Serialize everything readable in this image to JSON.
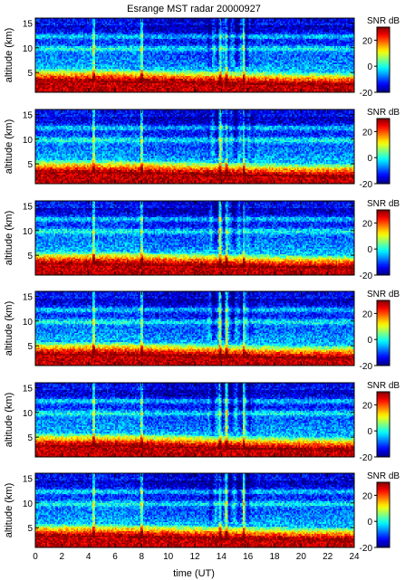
{
  "chart_data": {
    "type": "heatmap",
    "title": "Esrange MST radar 20000927",
    "xlabel": "time (UT)",
    "ylabel": "altitude (km)",
    "colorbar_label": "SNR dB",
    "xlim": [
      0,
      24
    ],
    "ylim": [
      1,
      16
    ],
    "x_ticks": [
      0,
      2,
      4,
      6,
      8,
      10,
      12,
      14,
      16,
      18,
      20,
      22,
      24
    ],
    "y_ticks": [
      5,
      10,
      15
    ],
    "colorbar_ticks": [
      -20,
      0,
      20
    ],
    "colorbar_range": [
      -20,
      30
    ],
    "colormap": "jet",
    "grid": false,
    "panel_count": 6,
    "time_resolution_hours": 0.1,
    "altitude_resolution_km": 0.3,
    "features": {
      "surface_layer_top_km": 4.5,
      "surface_layer_top_km_late": 3.8,
      "upper_band_altitudes_km": [
        9.8,
        12.3
      ],
      "vertical_streak_hours": [
        4.4,
        8.0,
        13.9,
        14.4,
        15.7
      ]
    }
  }
}
